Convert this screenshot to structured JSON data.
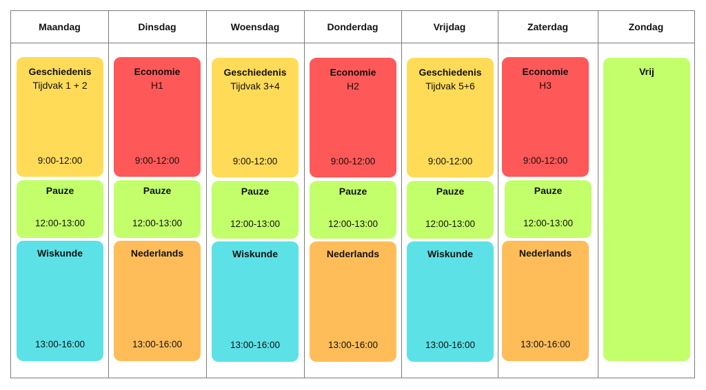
{
  "colors": {
    "geschiedenis": "#ffdb58",
    "economie": "#ff5858",
    "pauze": "#c2ff6b",
    "wiskunde": "#5ce1e6",
    "nederlands": "#ffbd59",
    "vrij": "#c2ff6b",
    "border": "#7a7a7a"
  },
  "days": [
    {
      "name": "Maandag",
      "morning": {
        "subject": "Geschiedenis",
        "detail": "Tijdvak 1 + 2",
        "time": "9:00-12:00",
        "color": "geschiedenis"
      },
      "pause": {
        "subject": "Pauze",
        "time": "12:00-13:00"
      },
      "afternoon": {
        "subject": "Wiskunde",
        "time": "13:00-16:00",
        "color": "wiskunde"
      }
    },
    {
      "name": "Dinsdag",
      "morning": {
        "subject": "Economie",
        "detail": "H1",
        "time": "9:00-12:00",
        "color": "economie"
      },
      "pause": {
        "subject": "Pauze",
        "time": "12:00-13:00"
      },
      "afternoon": {
        "subject": "Nederlands",
        "time": "13:00-16:00",
        "color": "nederlands"
      }
    },
    {
      "name": "Woensdag",
      "morning": {
        "subject": "Geschiedenis",
        "detail": "Tijdvak 3+4",
        "time": "9:00-12:00",
        "color": "geschiedenis"
      },
      "pause": {
        "subject": "Pauze",
        "time": "12:00-13:00"
      },
      "afternoon": {
        "subject": "Wiskunde",
        "time": "13:00-16:00",
        "color": "wiskunde"
      }
    },
    {
      "name": "Donderdag",
      "morning": {
        "subject": "Economie",
        "detail": "H2",
        "time": "9:00-12:00",
        "color": "economie"
      },
      "pause": {
        "subject": "Pauze",
        "time": "12:00-13:00"
      },
      "afternoon": {
        "subject": "Nederlands",
        "time": "13:00-16:00",
        "color": "nederlands"
      }
    },
    {
      "name": "Vrijdag",
      "morning": {
        "subject": "Geschiedenis",
        "detail": "Tijdvak 5+6",
        "time": "9:00-12:00",
        "color": "geschiedenis"
      },
      "pause": {
        "subject": "Pauze",
        "time": "12:00-13:00"
      },
      "afternoon": {
        "subject": "Wiskunde",
        "time": "13:00-16:00",
        "color": "wiskunde"
      }
    },
    {
      "name": "Zaterdag",
      "morning": {
        "subject": "Economie",
        "detail": "H3",
        "time": "9:00-12:00",
        "color": "economie"
      },
      "pause": {
        "subject": "Pauze",
        "time": "12:00-13:00"
      },
      "afternoon": {
        "subject": "Nederlands",
        "time": "13:00-16:00",
        "color": "nederlands"
      }
    }
  ],
  "sunday": {
    "name": "Zondag",
    "label": "Vrij"
  }
}
